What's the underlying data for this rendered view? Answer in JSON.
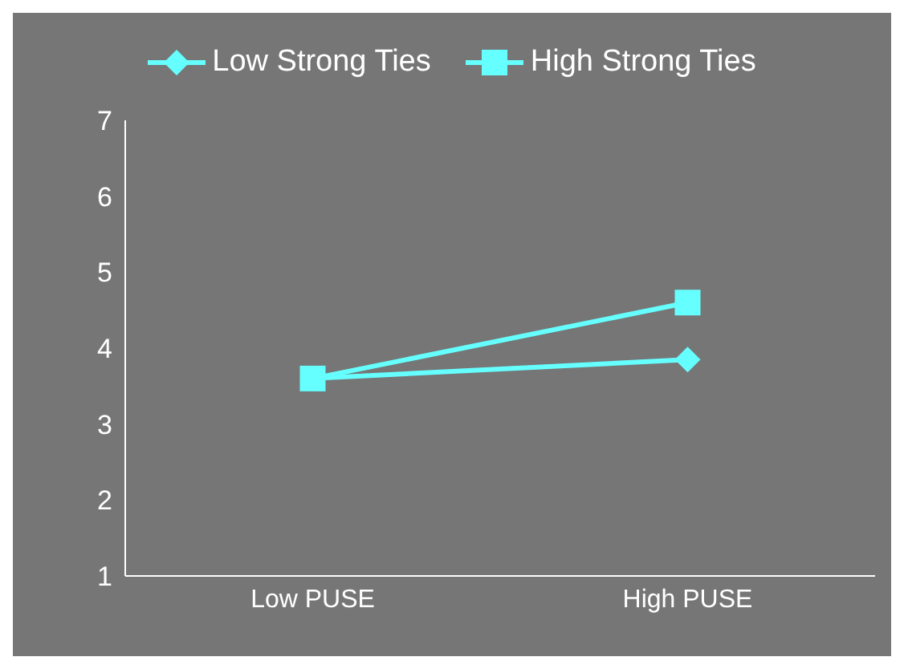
{
  "chart_data": {
    "type": "line",
    "categories": [
      "Low PUSE",
      "High PUSE"
    ],
    "series": [
      {
        "name": "Low  Strong Ties",
        "color": "#66ffff",
        "marker": "diamond",
        "values": [
          3.6,
          3.85
        ]
      },
      {
        "name": "High Strong Ties",
        "color": "#66ffff",
        "marker": "square",
        "values": [
          3.6,
          4.6
        ]
      }
    ],
    "ylim": [
      1,
      7
    ],
    "yticks": [
      1,
      2,
      3,
      4,
      5,
      6,
      7
    ],
    "legend": "top"
  }
}
